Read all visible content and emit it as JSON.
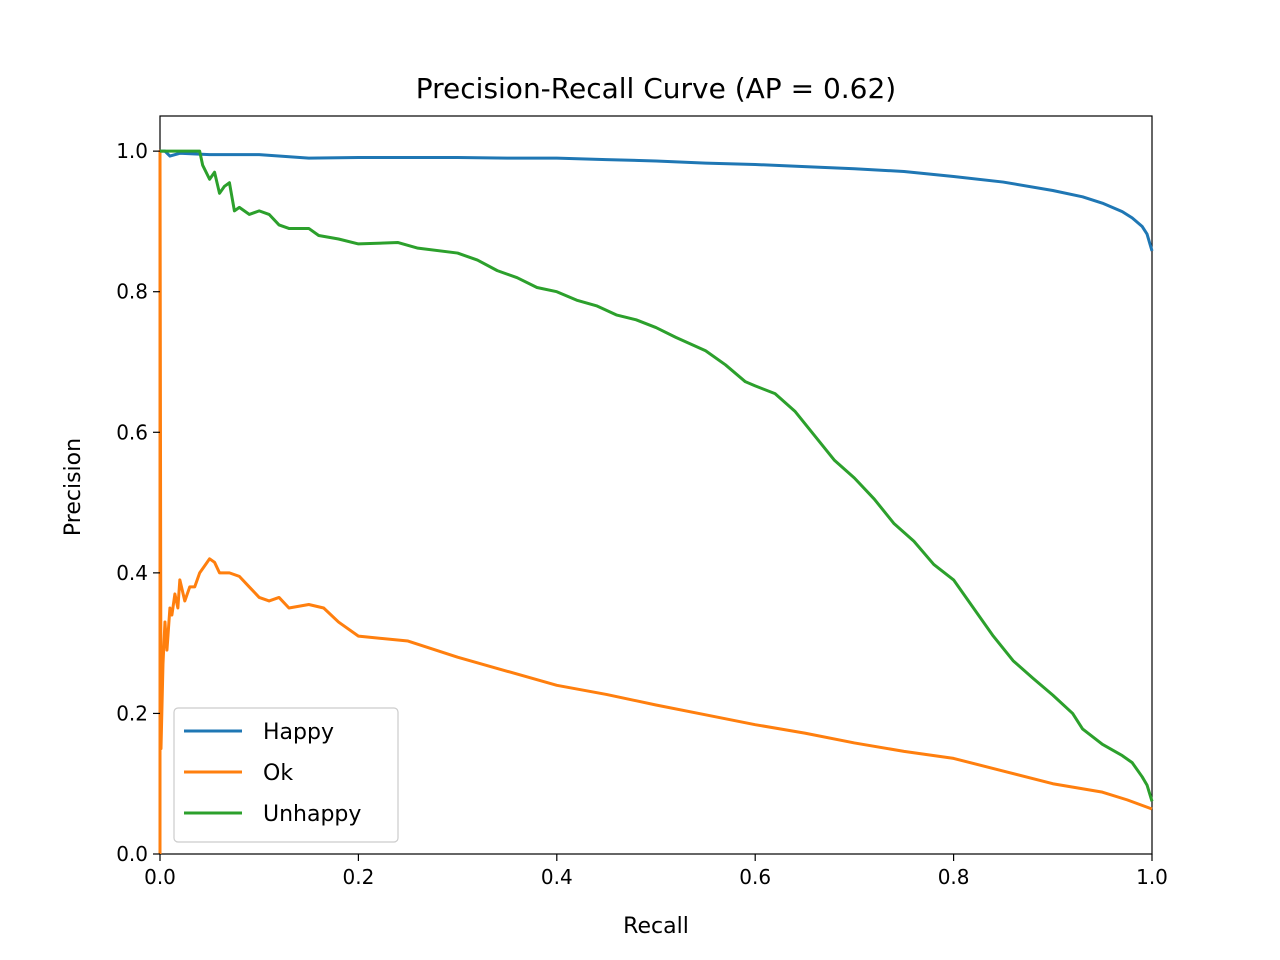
{
  "chart_data": {
    "type": "line",
    "title": "Precision-Recall Curve (AP = 0.62)",
    "xlabel": "Recall",
    "ylabel": "Precision",
    "xlim": [
      0.0,
      1.0
    ],
    "ylim": [
      0.0,
      1.05
    ],
    "xticks": [
      0.0,
      0.2,
      0.4,
      0.6,
      0.8,
      1.0
    ],
    "xtick_labels": [
      "0.0",
      "0.2",
      "0.4",
      "0.6",
      "0.8",
      "1.0"
    ],
    "yticks": [
      0.0,
      0.2,
      0.4,
      0.6,
      0.8,
      1.0
    ],
    "ytick_labels": [
      "0.0",
      "0.2",
      "0.4",
      "0.6",
      "0.8",
      "1.0"
    ],
    "grid": false,
    "legend_position": "lower-left",
    "series": [
      {
        "name": "Happy",
        "color": "#1f77b4",
        "points": [
          [
            0.0,
            1.0
          ],
          [
            0.005,
            1.0
          ],
          [
            0.01,
            0.993
          ],
          [
            0.02,
            0.997
          ],
          [
            0.05,
            0.995
          ],
          [
            0.1,
            0.995
          ],
          [
            0.15,
            0.99
          ],
          [
            0.2,
            0.991
          ],
          [
            0.25,
            0.991
          ],
          [
            0.3,
            0.991
          ],
          [
            0.35,
            0.99
          ],
          [
            0.4,
            0.99
          ],
          [
            0.45,
            0.988
          ],
          [
            0.5,
            0.986
          ],
          [
            0.55,
            0.983
          ],
          [
            0.6,
            0.981
          ],
          [
            0.65,
            0.978
          ],
          [
            0.7,
            0.975
          ],
          [
            0.75,
            0.971
          ],
          [
            0.8,
            0.964
          ],
          [
            0.85,
            0.956
          ],
          [
            0.9,
            0.944
          ],
          [
            0.93,
            0.935
          ],
          [
            0.95,
            0.926
          ],
          [
            0.97,
            0.914
          ],
          [
            0.98,
            0.905
          ],
          [
            0.99,
            0.893
          ],
          [
            0.995,
            0.882
          ],
          [
            1.0,
            0.858
          ]
        ]
      },
      {
        "name": "Ok",
        "color": "#ff7f0e",
        "points": [
          [
            0.0,
            0.0
          ],
          [
            0.0,
            1.0
          ],
          [
            0.001,
            0.15
          ],
          [
            0.003,
            0.27
          ],
          [
            0.005,
            0.33
          ],
          [
            0.007,
            0.29
          ],
          [
            0.01,
            0.35
          ],
          [
            0.012,
            0.34
          ],
          [
            0.015,
            0.37
          ],
          [
            0.018,
            0.35
          ],
          [
            0.02,
            0.39
          ],
          [
            0.025,
            0.36
          ],
          [
            0.03,
            0.38
          ],
          [
            0.035,
            0.38
          ],
          [
            0.04,
            0.4
          ],
          [
            0.045,
            0.41
          ],
          [
            0.05,
            0.42
          ],
          [
            0.055,
            0.415
          ],
          [
            0.06,
            0.4
          ],
          [
            0.07,
            0.4
          ],
          [
            0.08,
            0.395
          ],
          [
            0.09,
            0.38
          ],
          [
            0.1,
            0.365
          ],
          [
            0.11,
            0.36
          ],
          [
            0.12,
            0.365
          ],
          [
            0.13,
            0.35
          ],
          [
            0.15,
            0.355
          ],
          [
            0.165,
            0.35
          ],
          [
            0.18,
            0.33
          ],
          [
            0.2,
            0.31
          ],
          [
            0.25,
            0.303
          ],
          [
            0.3,
            0.28
          ],
          [
            0.35,
            0.26
          ],
          [
            0.4,
            0.24
          ],
          [
            0.45,
            0.227
          ],
          [
            0.5,
            0.212
          ],
          [
            0.55,
            0.198
          ],
          [
            0.6,
            0.184
          ],
          [
            0.65,
            0.172
          ],
          [
            0.7,
            0.158
          ],
          [
            0.75,
            0.146
          ],
          [
            0.8,
            0.136
          ],
          [
            0.85,
            0.118
          ],
          [
            0.9,
            0.1
          ],
          [
            0.95,
            0.088
          ],
          [
            0.975,
            0.077
          ],
          [
            1.0,
            0.064
          ]
        ]
      },
      {
        "name": "Unhappy",
        "color": "#2ca02c",
        "points": [
          [
            0.0,
            1.0
          ],
          [
            0.04,
            1.0
          ],
          [
            0.043,
            0.98
          ],
          [
            0.05,
            0.96
          ],
          [
            0.055,
            0.97
          ],
          [
            0.06,
            0.94
          ],
          [
            0.065,
            0.95
          ],
          [
            0.07,
            0.955
          ],
          [
            0.075,
            0.915
          ],
          [
            0.08,
            0.92
          ],
          [
            0.09,
            0.91
          ],
          [
            0.1,
            0.915
          ],
          [
            0.11,
            0.91
          ],
          [
            0.12,
            0.895
          ],
          [
            0.13,
            0.89
          ],
          [
            0.15,
            0.89
          ],
          [
            0.16,
            0.88
          ],
          [
            0.18,
            0.875
          ],
          [
            0.2,
            0.868
          ],
          [
            0.24,
            0.87
          ],
          [
            0.26,
            0.862
          ],
          [
            0.3,
            0.855
          ],
          [
            0.32,
            0.845
          ],
          [
            0.34,
            0.83
          ],
          [
            0.36,
            0.82
          ],
          [
            0.38,
            0.806
          ],
          [
            0.4,
            0.8
          ],
          [
            0.42,
            0.788
          ],
          [
            0.44,
            0.78
          ],
          [
            0.46,
            0.767
          ],
          [
            0.48,
            0.76
          ],
          [
            0.5,
            0.749
          ],
          [
            0.52,
            0.735
          ],
          [
            0.55,
            0.716
          ],
          [
            0.57,
            0.696
          ],
          [
            0.59,
            0.672
          ],
          [
            0.6,
            0.666
          ],
          [
            0.62,
            0.655
          ],
          [
            0.64,
            0.63
          ],
          [
            0.66,
            0.595
          ],
          [
            0.68,
            0.56
          ],
          [
            0.7,
            0.535
          ],
          [
            0.72,
            0.505
          ],
          [
            0.74,
            0.47
          ],
          [
            0.76,
            0.445
          ],
          [
            0.78,
            0.412
          ],
          [
            0.8,
            0.39
          ],
          [
            0.82,
            0.35
          ],
          [
            0.84,
            0.31
          ],
          [
            0.86,
            0.275
          ],
          [
            0.88,
            0.25
          ],
          [
            0.9,
            0.226
          ],
          [
            0.92,
            0.2
          ],
          [
            0.93,
            0.178
          ],
          [
            0.95,
            0.156
          ],
          [
            0.97,
            0.14
          ],
          [
            0.98,
            0.13
          ],
          [
            0.99,
            0.11
          ],
          [
            0.995,
            0.098
          ],
          [
            1.0,
            0.075
          ]
        ]
      }
    ]
  }
}
